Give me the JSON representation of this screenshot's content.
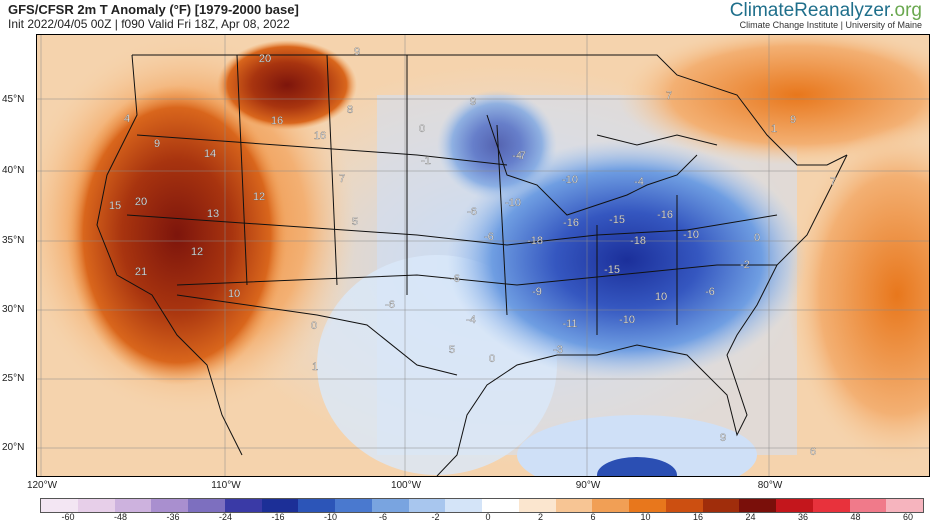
{
  "header": {
    "title": "GFS/CFSR 2m T Anomaly (°F) [1979-2000 base]",
    "subtitle": "Init 2022/04/05 00Z | f090 Valid Fri 18Z, Apr 08, 2022",
    "brand_main": "ClimateReanalyzer",
    "brand_suffix": ".org",
    "brand_sub": "Climate Change Institute | University of Maine"
  },
  "axes": {
    "lat_labels": [
      "45°N",
      "40°N",
      "35°N",
      "30°N",
      "25°N",
      "20°N"
    ],
    "lon_labels": [
      "120°W",
      "110°W",
      "100°W",
      "90°W",
      "80°W"
    ]
  },
  "colorbar": {
    "ticks": [
      "-60",
      "-48",
      "-36",
      "-24",
      "-16",
      "-10",
      "-6",
      "-2",
      "0",
      "2",
      "6",
      "10",
      "16",
      "24",
      "36",
      "48",
      "60"
    ],
    "colors": [
      "#f3e6f3",
      "#e7cfe9",
      "#cdb2de",
      "#a98fcf",
      "#7d6fbf",
      "#3a3aa6",
      "#1c2f97",
      "#2c55b8",
      "#4a79cf",
      "#79a4e0",
      "#a8c6ee",
      "#d4e4f8",
      "#ffffff",
      "#fbe6cf",
      "#f7c594",
      "#f19f55",
      "#e8771c",
      "#cc4f11",
      "#a02d0b",
      "#7a0f0a",
      "#c4161c",
      "#e8323c",
      "#f07a8a",
      "#f6b4be"
    ]
  },
  "anomaly_labels": [
    {
      "v": "20"
    },
    {
      "v": "9"
    },
    {
      "v": "8"
    },
    {
      "v": "16"
    },
    {
      "v": "16"
    },
    {
      "v": "4"
    },
    {
      "v": "9"
    },
    {
      "v": "14"
    },
    {
      "v": "7"
    },
    {
      "v": "12"
    },
    {
      "v": "15"
    },
    {
      "v": "20"
    },
    {
      "v": "13"
    },
    {
      "v": "5"
    },
    {
      "v": "12"
    },
    {
      "v": "21"
    },
    {
      "v": "10"
    },
    {
      "v": "0"
    },
    {
      "v": "1"
    },
    {
      "v": "5"
    },
    {
      "v": "9"
    },
    {
      "v": "0"
    },
    {
      "v": "-1"
    },
    {
      "v": "-6"
    },
    {
      "v": "-6"
    },
    {
      "v": "-6"
    },
    {
      "v": "-4"
    },
    {
      "v": "-6"
    },
    {
      "v": "0"
    },
    {
      "v": "-3"
    },
    {
      "v": "-4"
    },
    {
      "v": "-7"
    },
    {
      "v": "-10"
    },
    {
      "v": "-4"
    },
    {
      "v": "-10"
    },
    {
      "v": "-16"
    },
    {
      "v": "-15"
    },
    {
      "v": "-16"
    },
    {
      "v": "-18"
    },
    {
      "v": "-18"
    },
    {
      "v": "-10"
    },
    {
      "v": "-15"
    },
    {
      "v": "-2"
    },
    {
      "v": "-9"
    },
    {
      "v": "-11"
    },
    {
      "v": "-10"
    },
    {
      "v": "10"
    },
    {
      "v": "-6"
    },
    {
      "v": "0"
    },
    {
      "v": "7"
    },
    {
      "v": "1"
    },
    {
      "v": "9"
    },
    {
      "v": "7"
    },
    {
      "v": "9"
    },
    {
      "v": "6"
    }
  ]
}
